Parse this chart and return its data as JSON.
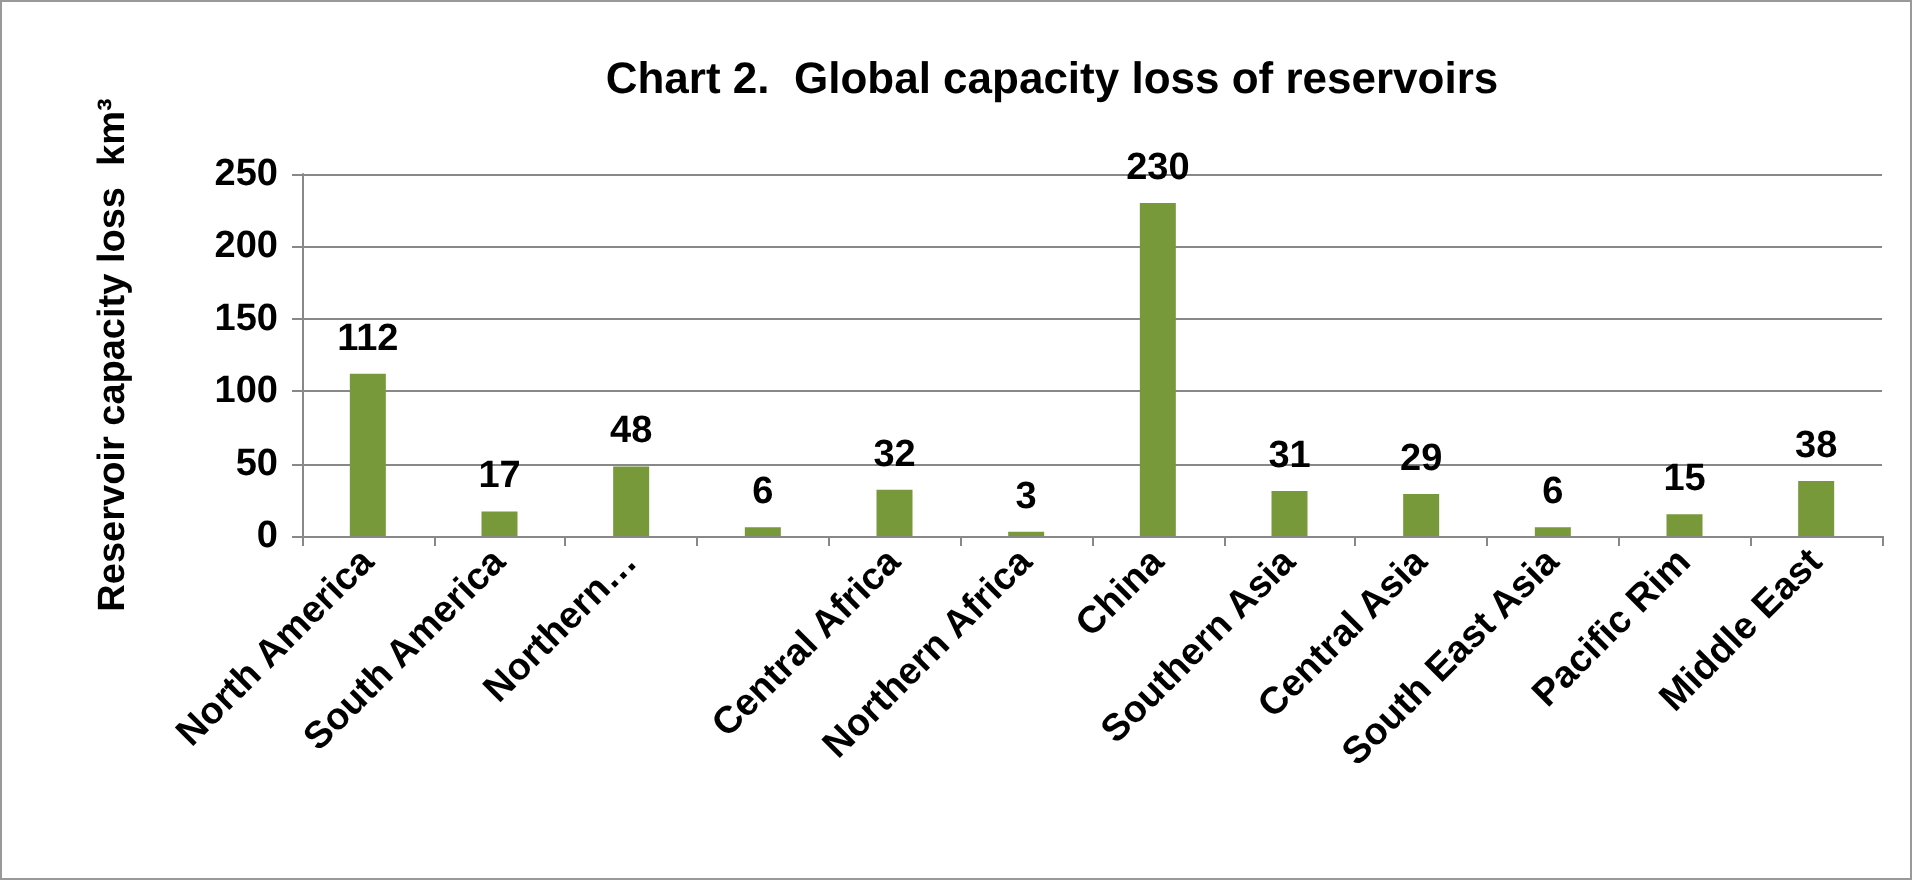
{
  "chart_data": {
    "type": "bar",
    "title": "Chart 2.  Global capacity loss of reservoirs",
    "ylabel": "Reservoir capacity loss  km³",
    "categories": [
      "North America",
      "South America",
      "Northern…",
      null,
      "Central Africa",
      "Northern Africa",
      "China",
      "Southern Asia",
      "Central Asia",
      "South East Asia",
      "Pacific Rim",
      "Middle East"
    ],
    "values": [
      112,
      17,
      48,
      6,
      32,
      3,
      230,
      31,
      29,
      6,
      15,
      38
    ],
    "color": "#77993a",
    "ylim": [
      0,
      250
    ],
    "yticks": [
      0,
      50,
      100,
      150,
      200,
      250
    ],
    "grid": "y",
    "data_labels": true
  }
}
